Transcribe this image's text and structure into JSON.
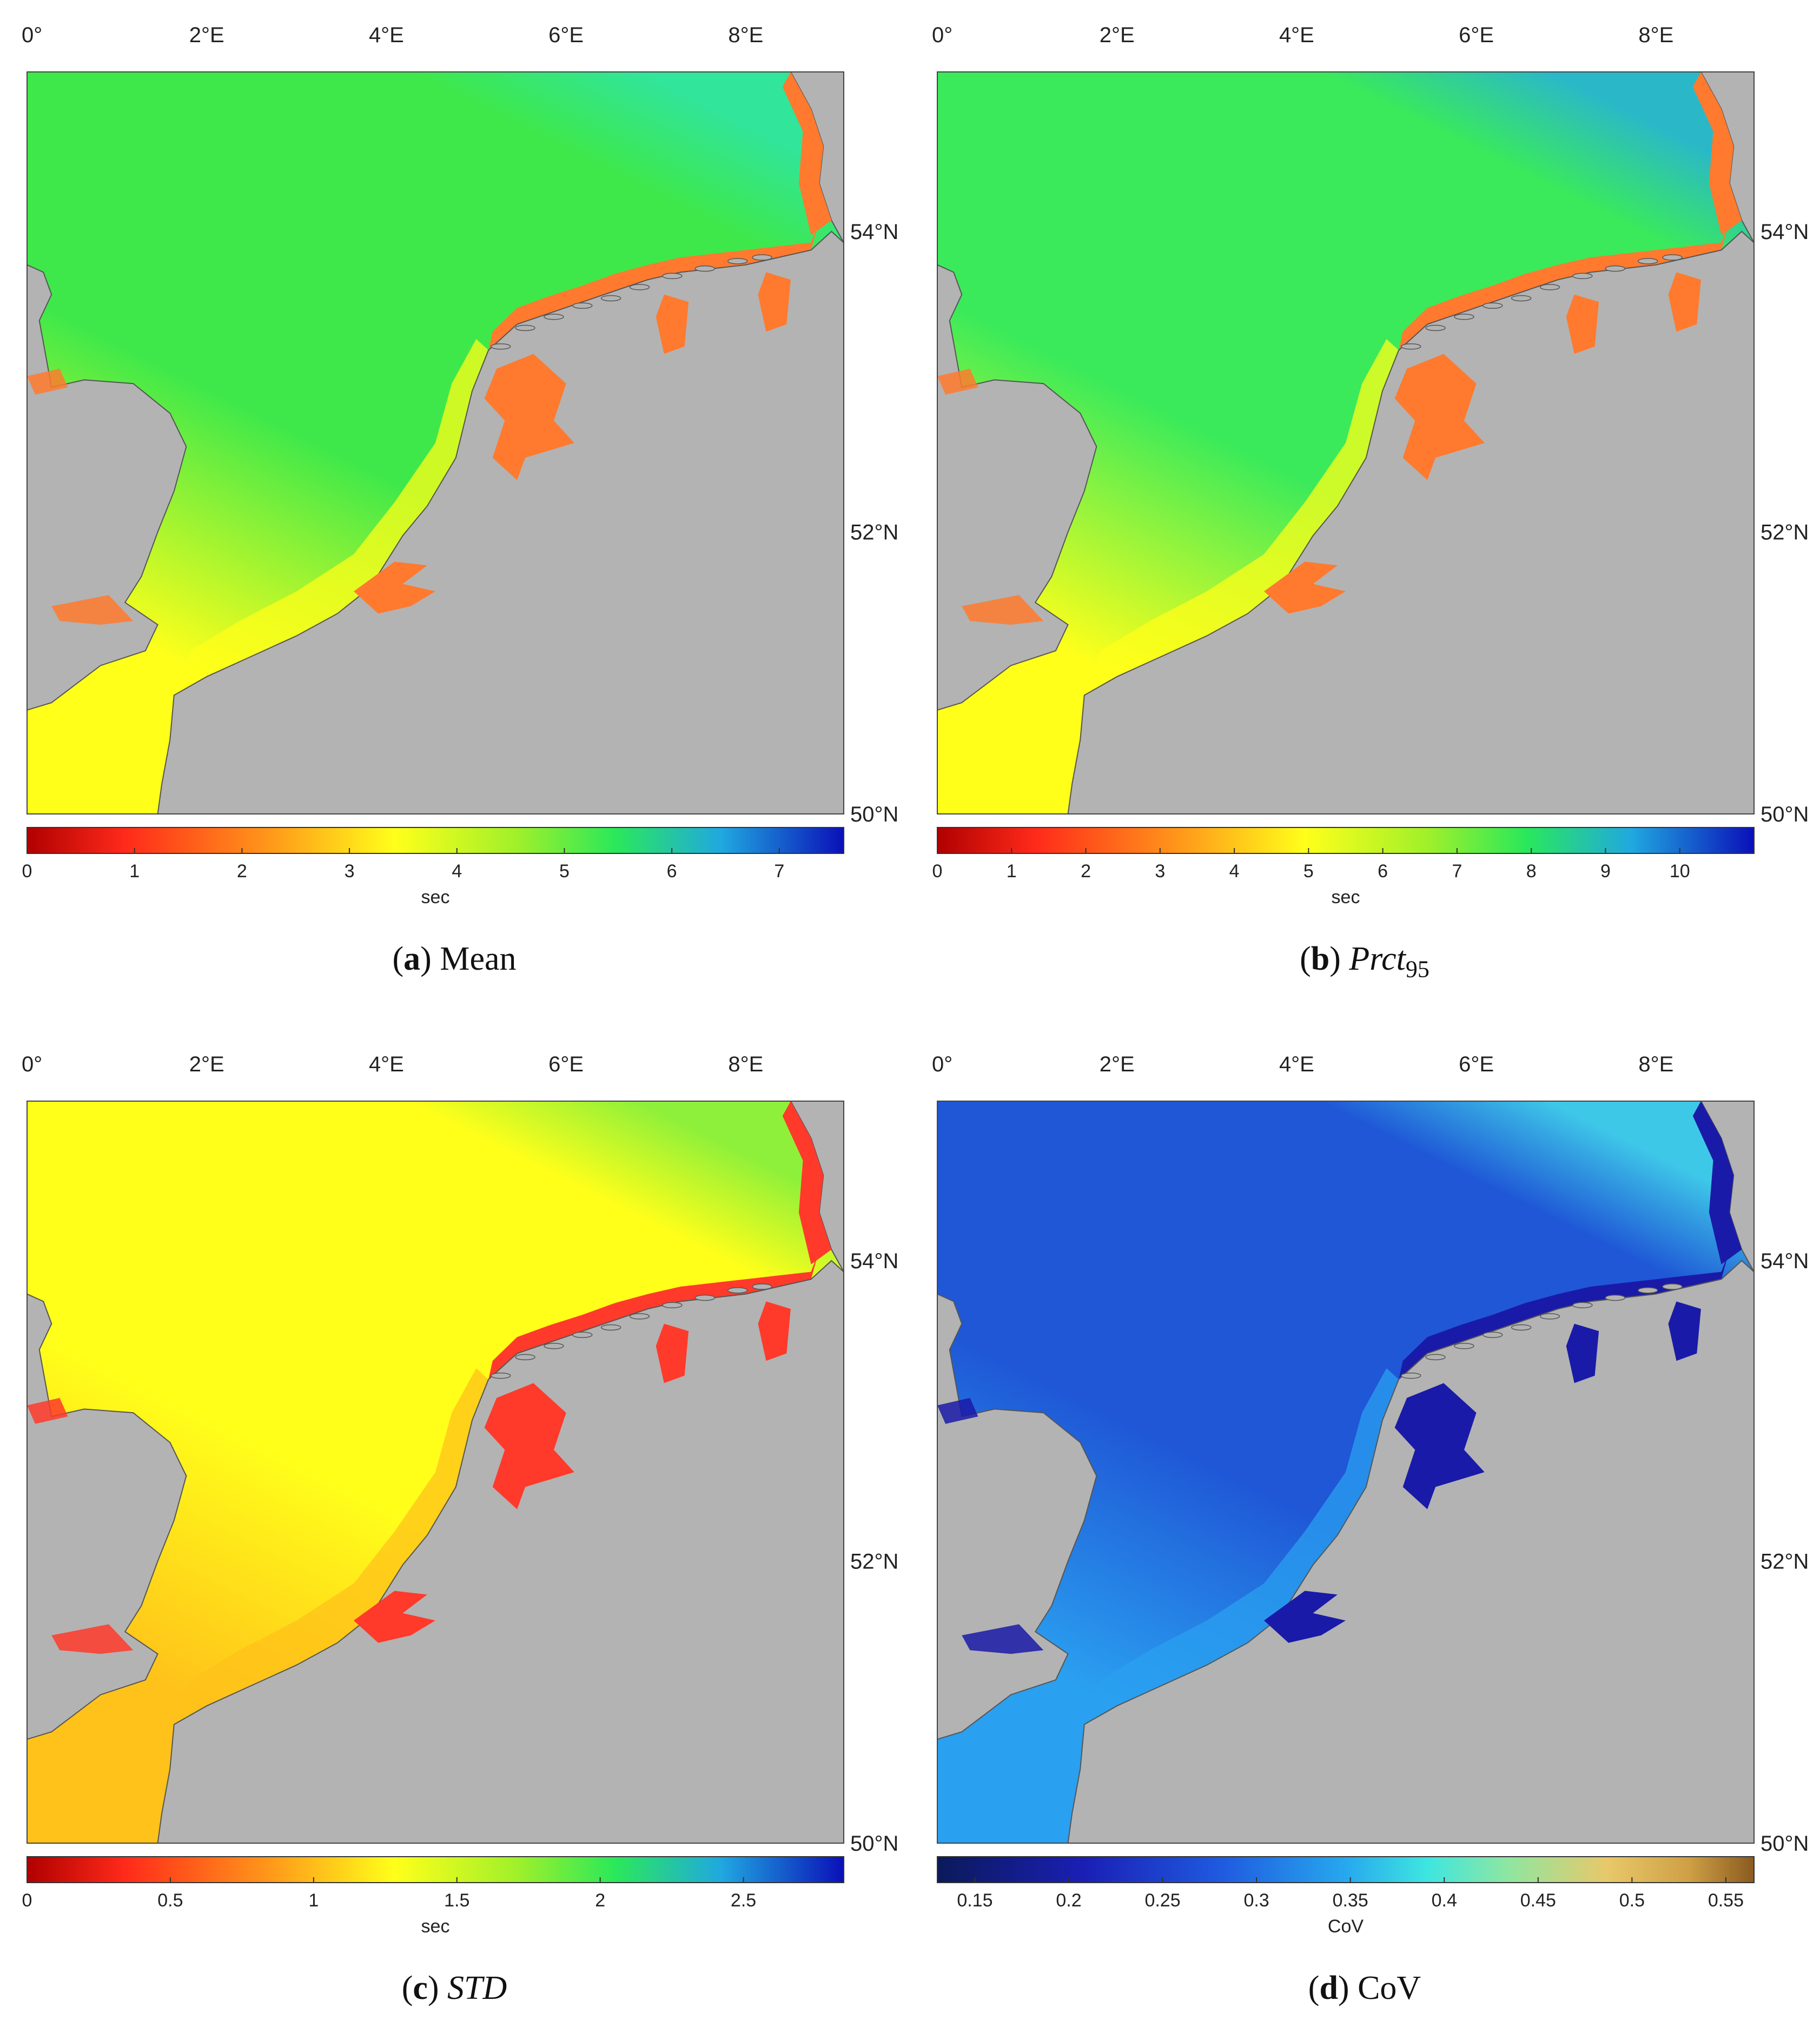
{
  "map": {
    "lon_labels": [
      "0°",
      "2°E",
      "4°E",
      "6°E",
      "8°E"
    ],
    "lat_labels": [
      "54°N",
      "52°N",
      "50°N"
    ],
    "land_color": "#b3b3b3"
  },
  "panels": [
    {
      "letter": "a",
      "title": "Mean",
      "title_style": "normal",
      "subscript": "",
      "colormap": "jet_reversed",
      "cbar_ticks": [
        "0",
        "1",
        "2",
        "3",
        "4",
        "5",
        "6",
        "7"
      ],
      "cbar_max": 7.6,
      "cbar_values": [
        0,
        1,
        2,
        3,
        4,
        5,
        6,
        7
      ],
      "cbar_label": "sec",
      "colors": {
        "sea": "#3ee84a",
        "nearshore": "#ffff1a",
        "estuary": "#ff7a2e",
        "offshore_edge": "#31e59a"
      }
    },
    {
      "letter": "b",
      "title": "Prct",
      "title_style": "italic",
      "subscript": "95",
      "colormap": "jet_reversed",
      "cbar_ticks": [
        "0",
        "1",
        "2",
        "3",
        "4",
        "5",
        "6",
        "7",
        "8",
        "9",
        "10"
      ],
      "cbar_max": 11,
      "cbar_values": [
        0,
        1,
        2,
        3,
        4,
        5,
        6,
        7,
        8,
        9,
        10
      ],
      "cbar_label": "sec",
      "colors": {
        "sea": "#3aea5a",
        "nearshore": "#ffff1a",
        "estuary": "#ff7a2e",
        "offshore_edge": "#2ab8c8"
      }
    },
    {
      "letter": "c",
      "title": "STD",
      "title_style": "italic",
      "subscript": "",
      "colormap": "jet_reversed",
      "cbar_ticks": [
        "0",
        "0.5",
        "1",
        "1.5",
        "2",
        "2.5"
      ],
      "cbar_max": 2.85,
      "cbar_values": [
        0,
        0.5,
        1,
        1.5,
        2,
        2.5
      ],
      "cbar_label": "sec",
      "colors": {
        "sea": "#ffff1a",
        "nearshore": "#ffc21a",
        "estuary": "#ff3a2a",
        "offshore_edge": "#8ef03a"
      }
    },
    {
      "letter": "d",
      "title": "CoV",
      "title_style": "normal",
      "subscript": "",
      "colormap": "cov",
      "cbar_ticks": [
        "0.15",
        "0.2",
        "0.25",
        "0.3",
        "0.35",
        "0.4",
        "0.45",
        "0.5",
        "0.55"
      ],
      "cbar_min": 0.13,
      "cbar_max": 0.565,
      "cbar_values": [
        0.15,
        0.2,
        0.25,
        0.3,
        0.35,
        0.4,
        0.45,
        0.5,
        0.55
      ],
      "cbar_label": "CoV",
      "colors": {
        "sea": "#1f57d6",
        "nearshore": "#2aa0f0",
        "estuary": "#1a1aa8",
        "offshore_edge": "#3ec8e8"
      }
    }
  ]
}
